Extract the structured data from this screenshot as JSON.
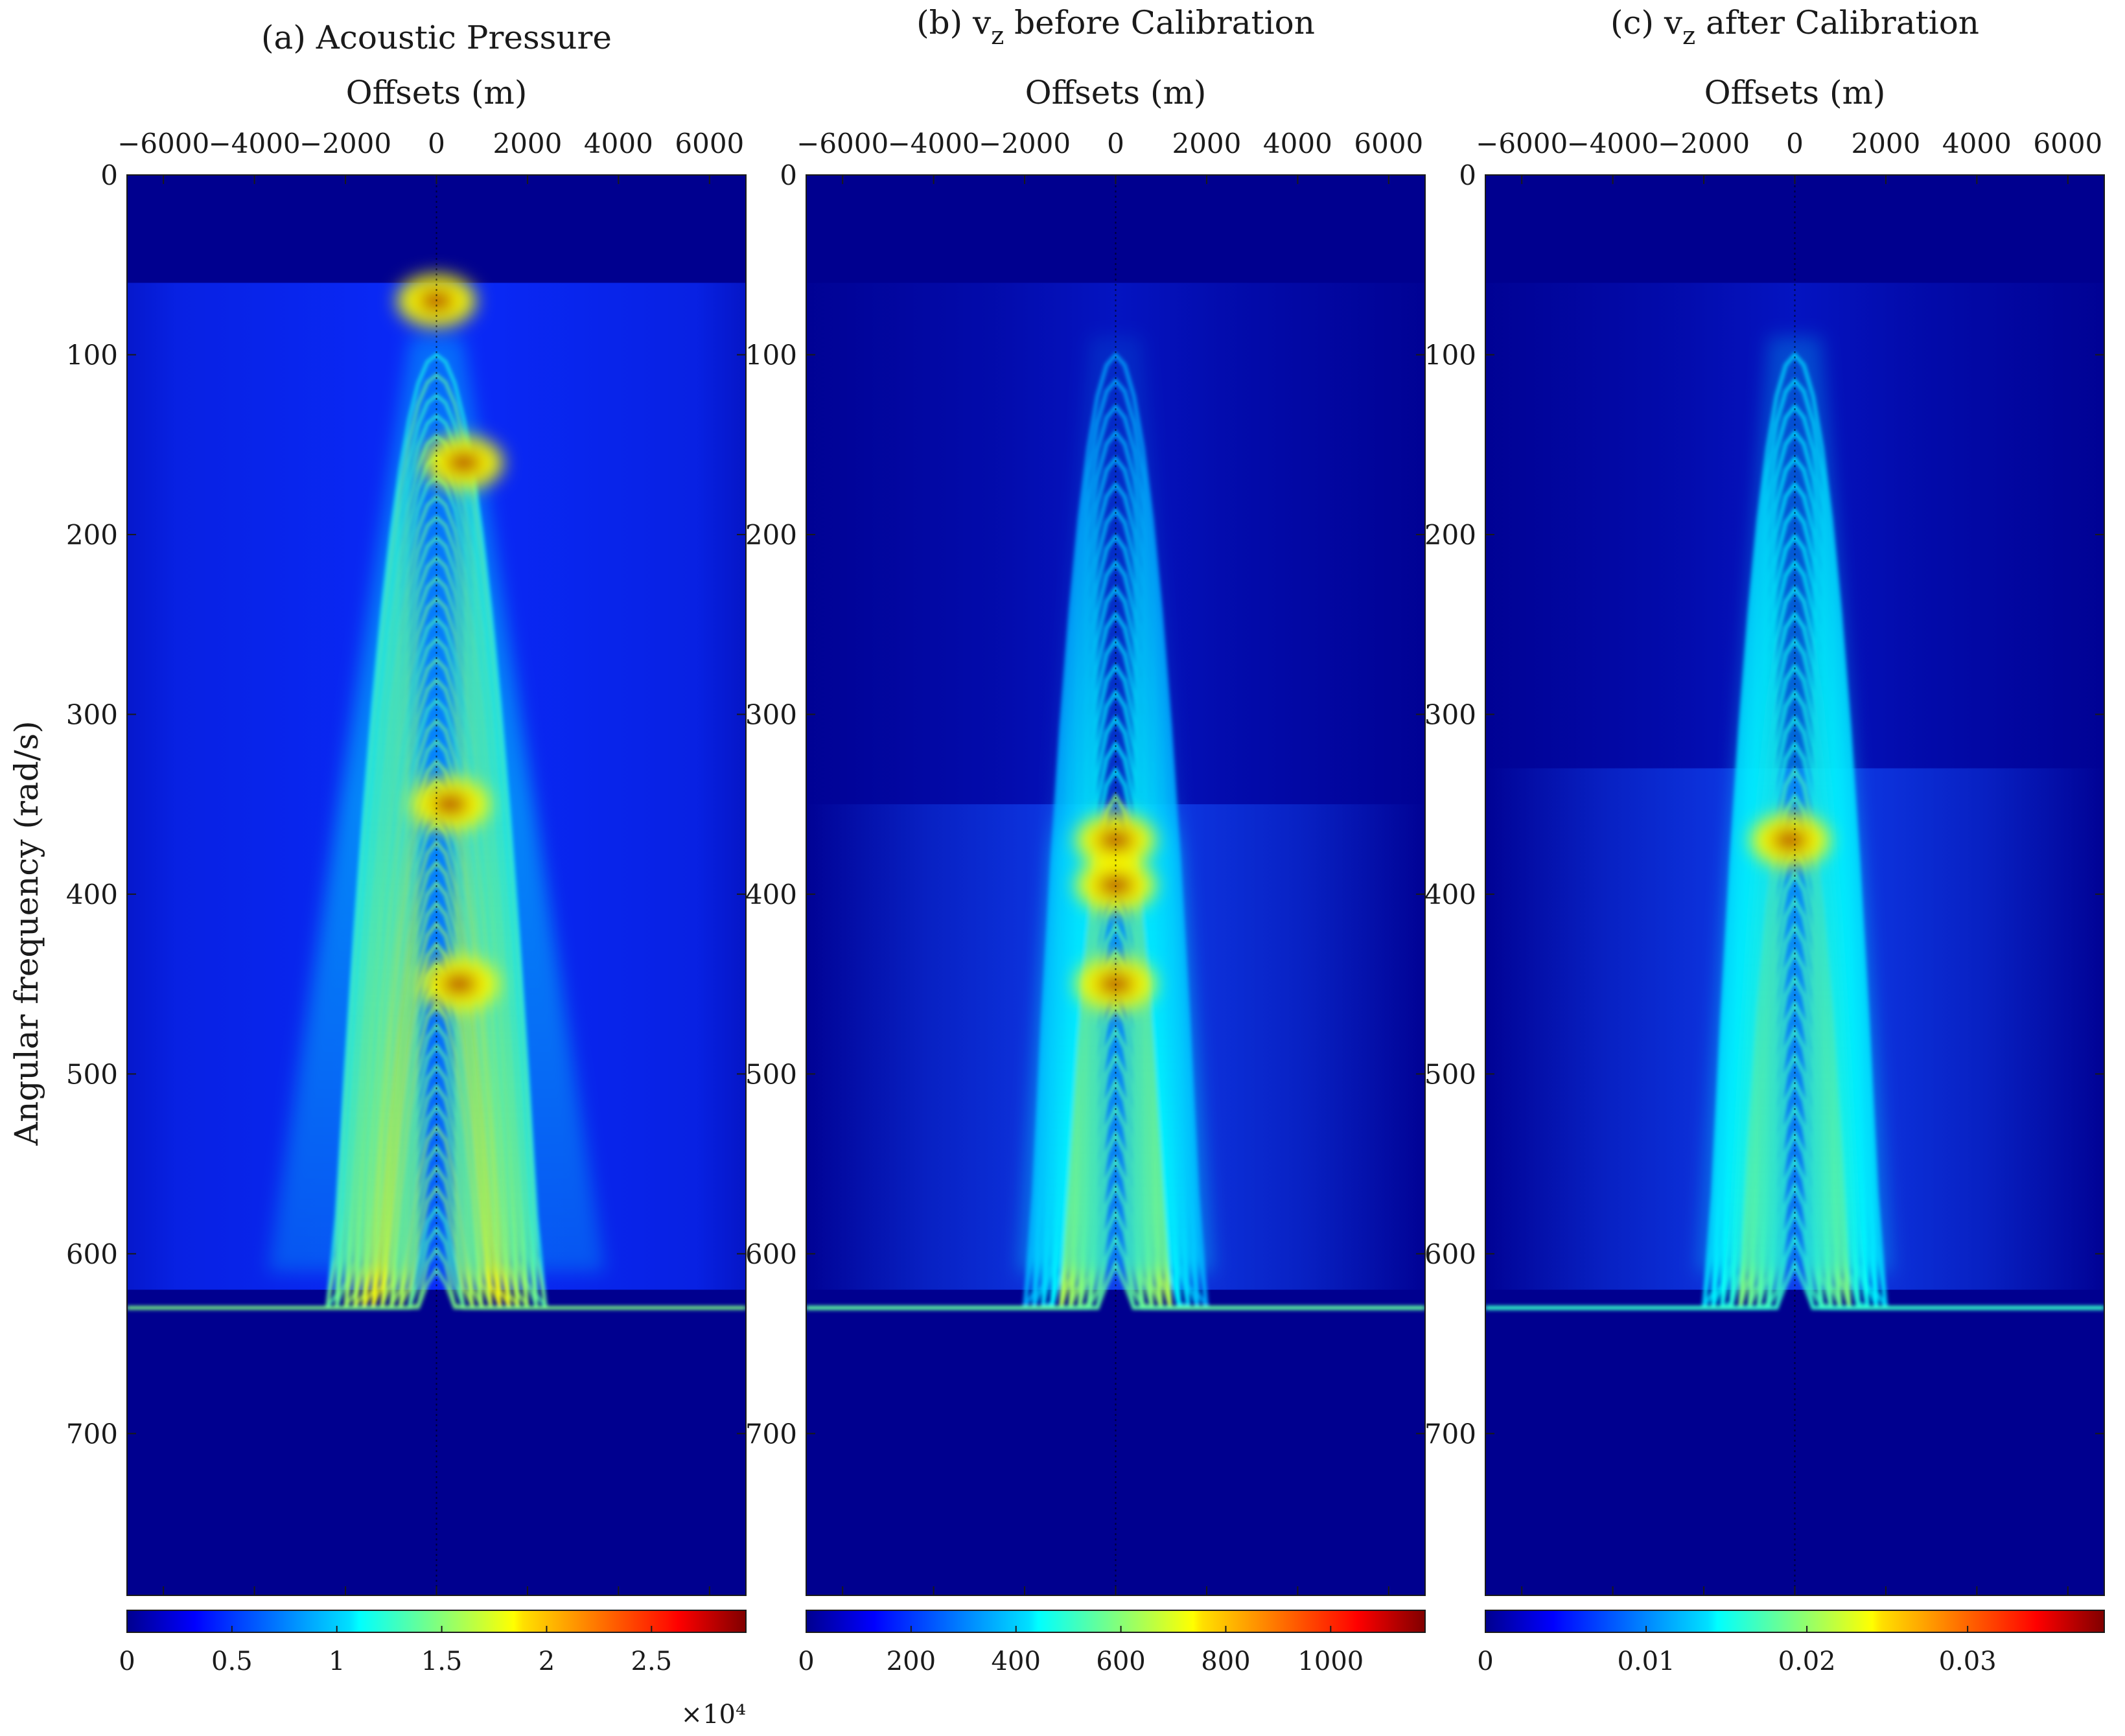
{
  "figure": {
    "ylabel": "Angular frequency (rad/s)",
    "colormap": "jet",
    "background_color": "#00008f",
    "grid": false
  },
  "chart_data": [
    {
      "type": "heatmap",
      "title": "(a) Acoustic Pressure",
      "xlabel": "Offsets (m)",
      "xlabel_position": "top",
      "xlim": [
        -6800,
        6800
      ],
      "xticks": [
        -6000,
        -4000,
        -2000,
        0,
        2000,
        4000,
        6000
      ],
      "ylim": [
        0,
        790
      ],
      "yreversed": true,
      "yticks": [
        0,
        100,
        200,
        300,
        400,
        500,
        600,
        700
      ],
      "colorbar": {
        "orientation": "horizontal",
        "position": "bottom",
        "min": 0,
        "max": 29500,
        "ticks": [
          0,
          5000,
          10000,
          15000,
          20000,
          25000
        ],
        "tick_labels": [
          "0",
          "0.5",
          "1",
          "1.5",
          "2",
          "2.5"
        ],
        "multiplier": "×10⁴"
      },
      "energy_band": [
        60,
        620
      ],
      "peak_zones": [
        [
          0,
          70
        ],
        [
          600,
          160
        ],
        [
          300,
          350
        ],
        [
          500,
          450
        ]
      ],
      "character": "broad hyperbolic events across all offsets"
    },
    {
      "type": "heatmap",
      "title": "(b) v",
      "title_subscript": "z",
      "title_suffix": " before Calibration",
      "xlabel": "Offsets (m)",
      "xlabel_position": "top",
      "xlim": [
        -6800,
        6800
      ],
      "xticks": [
        -6000,
        -4000,
        -2000,
        0,
        2000,
        4000,
        6000
      ],
      "ylim": [
        0,
        790
      ],
      "yreversed": true,
      "yticks": [
        0,
        100,
        200,
        300,
        400,
        500,
        600,
        700
      ],
      "colorbar": {
        "orientation": "horizontal",
        "position": "bottom",
        "min": 0,
        "max": 1180,
        "ticks": [
          0,
          200,
          400,
          600,
          800,
          1000
        ],
        "tick_labels": [
          "0",
          "200",
          "400",
          "600",
          "800",
          "1000"
        ]
      },
      "energy_band": [
        60,
        620
      ],
      "step_at": 350,
      "peak_zones": [
        [
          0,
          370
        ],
        [
          0,
          395
        ],
        [
          0,
          450
        ]
      ],
      "character": "narrow central events, strongest at 360-480 rad/s"
    },
    {
      "type": "heatmap",
      "title": "(c) v",
      "title_subscript": "z",
      "title_suffix": " after Calibration",
      "xlabel": "Offsets (m)",
      "xlabel_position": "top",
      "xlim": [
        -6800,
        6800
      ],
      "xticks": [
        -6000,
        -4000,
        -2000,
        0,
        2000,
        4000,
        6000
      ],
      "ylim": [
        0,
        790
      ],
      "yreversed": true,
      "yticks": [
        0,
        100,
        200,
        300,
        400,
        500,
        600,
        700
      ],
      "colorbar": {
        "orientation": "horizontal",
        "position": "bottom",
        "min": 0,
        "max": 0.0385,
        "ticks": [
          0,
          0.01,
          0.02,
          0.03
        ],
        "tick_labels": [
          "0",
          "0.01",
          "0.02",
          "0.03"
        ]
      },
      "energy_band": [
        60,
        620
      ],
      "step_at": 330,
      "peak_zones": [
        [
          -100,
          370
        ]
      ],
      "character": "balanced central events with a single peak near 370 rad/s"
    }
  ]
}
